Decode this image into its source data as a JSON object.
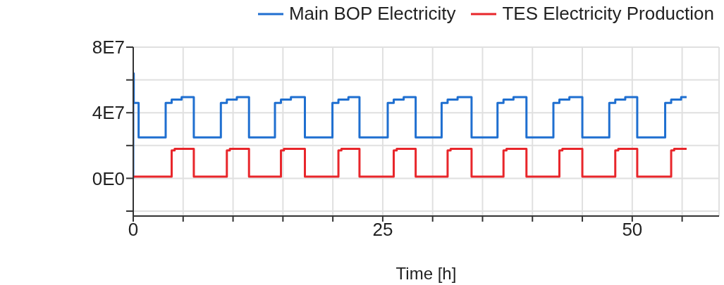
{
  "chart_data": {
    "type": "step",
    "xlabel": "Time [h]",
    "xlim": [
      0,
      58.7
    ],
    "xticks": [
      0,
      {
        "value": 5,
        "label": null
      },
      {
        "value": 10,
        "label": null
      },
      {
        "value": 15,
        "label": null
      },
      {
        "value": 20,
        "label": null
      },
      25,
      {
        "value": 30,
        "label": null
      },
      {
        "value": 35,
        "label": null
      },
      {
        "value": 40,
        "label": null
      },
      {
        "value": 45,
        "label": null
      },
      50,
      {
        "value": 55,
        "label": null
      }
    ],
    "ylim": [
      -23000000,
      80000000
    ],
    "yticks": [
      {
        "value": -20000000,
        "label": null
      },
      {
        "value": 0,
        "label": "0E0"
      },
      {
        "value": 20000000,
        "label": null
      },
      {
        "value": 40000000,
        "label": "4E7"
      },
      {
        "value": 60000000,
        "label": null
      },
      {
        "value": 80000000,
        "label": "8E7"
      }
    ],
    "grid": true,
    "legend": "top right",
    "marker": "none",
    "line_style": "solid",
    "series": [
      {
        "name": "Main BOP Electricity",
        "color": "#1f6fd0",
        "x": [
          0,
          0,
          0.05,
          0.54,
          3.25,
          3.85,
          4.85,
          6.07,
          8.78,
          9.38,
          10.38,
          11.6,
          14.2,
          14.8,
          15.8,
          17.2,
          19.96,
          20.56,
          21.56,
          22.67,
          25.5,
          26.1,
          27.1,
          28.3,
          30.9,
          31.5,
          32.5,
          33.9,
          36.5,
          37.1,
          38.1,
          39.4,
          42.1,
          42.7,
          43.7,
          45.0,
          47.7,
          48.3,
          49.3,
          50.5,
          53.3,
          53.9,
          54.9,
          55.45
        ],
        "values": [
          0,
          64000000,
          46000000,
          25000000,
          46000000,
          48000000,
          49500000,
          25000000,
          46000000,
          48000000,
          49500000,
          25000000,
          46000000,
          48000000,
          49500000,
          25000000,
          46000000,
          48000000,
          49500000,
          25000000,
          46000000,
          48000000,
          49500000,
          25000000,
          46000000,
          48000000,
          49500000,
          25000000,
          46000000,
          48000000,
          49500000,
          25000000,
          46000000,
          48000000,
          49500000,
          25000000,
          46000000,
          48000000,
          49500000,
          25000000,
          46000000,
          48000000,
          49500000,
          49500000
        ]
      },
      {
        "name": "TES Electricity Production",
        "color": "#e8262b",
        "x": [
          0,
          3.85,
          4.15,
          6.07,
          9.38,
          9.68,
          11.6,
          14.8,
          15.1,
          17.2,
          20.56,
          20.86,
          22.67,
          26.1,
          26.4,
          28.3,
          31.5,
          31.8,
          33.9,
          37.1,
          37.4,
          39.4,
          42.7,
          43.0,
          45.0,
          48.3,
          48.6,
          50.5,
          53.9,
          54.2,
          55.45
        ],
        "values": [
          1000000,
          17000000,
          18000000,
          1000000,
          17000000,
          18000000,
          1000000,
          17000000,
          18000000,
          1000000,
          17000000,
          18000000,
          1000000,
          17000000,
          18000000,
          1000000,
          17000000,
          18000000,
          1000000,
          17000000,
          18000000,
          1000000,
          17000000,
          18000000,
          1000000,
          17000000,
          18000000,
          1000000,
          17000000,
          18000000,
          18000000
        ]
      }
    ]
  }
}
